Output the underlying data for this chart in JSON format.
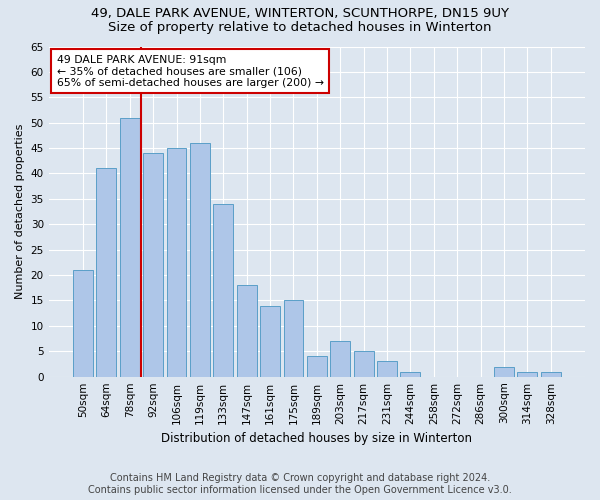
{
  "title1": "49, DALE PARK AVENUE, WINTERTON, SCUNTHORPE, DN15 9UY",
  "title2": "Size of property relative to detached houses in Winterton",
  "xlabel": "Distribution of detached houses by size in Winterton",
  "ylabel": "Number of detached properties",
  "categories": [
    "50sqm",
    "64sqm",
    "78sqm",
    "92sqm",
    "106sqm",
    "119sqm",
    "133sqm",
    "147sqm",
    "161sqm",
    "175sqm",
    "189sqm",
    "203sqm",
    "217sqm",
    "231sqm",
    "244sqm",
    "258sqm",
    "272sqm",
    "286sqm",
    "300sqm",
    "314sqm",
    "328sqm"
  ],
  "values": [
    21,
    41,
    51,
    44,
    45,
    46,
    34,
    18,
    14,
    15,
    4,
    7,
    5,
    3,
    1,
    0,
    0,
    0,
    2,
    1,
    1
  ],
  "bar_color": "#aec6e8",
  "bar_edge_color": "#5a9fc8",
  "background_color": "#dde6f0",
  "grid_color": "#ffffff",
  "annotation_text_line1": "49 DALE PARK AVENUE: 91sqm",
  "annotation_text_line2": "← 35% of detached houses are smaller (106)",
  "annotation_text_line3": "65% of semi-detached houses are larger (200) →",
  "annotation_box_color": "#ffffff",
  "annotation_box_edge": "#cc0000",
  "vline_color": "#cc0000",
  "vline_x": 2.5,
  "ylim": [
    0,
    65
  ],
  "yticks": [
    0,
    5,
    10,
    15,
    20,
    25,
    30,
    35,
    40,
    45,
    50,
    55,
    60,
    65
  ],
  "footnote1": "Contains HM Land Registry data © Crown copyright and database right 2024.",
  "footnote2": "Contains public sector information licensed under the Open Government Licence v3.0.",
  "title1_fontsize": 9.5,
  "title2_fontsize": 9.5,
  "xlabel_fontsize": 8.5,
  "ylabel_fontsize": 8,
  "tick_fontsize": 7.5,
  "footnote_fontsize": 7
}
